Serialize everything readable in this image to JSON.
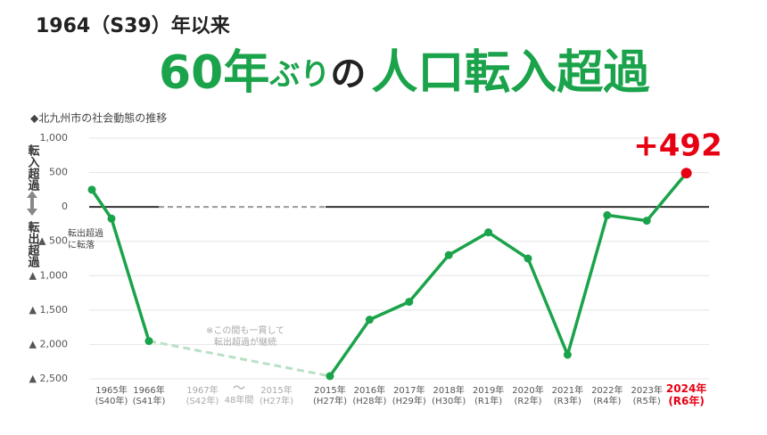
{
  "chart_data": {
    "type": "line",
    "kicker": "1964（S39）年以来",
    "headline": [
      "60年",
      "ぶり",
      "の",
      "人口転入超過"
    ],
    "subtitle": "◆北九州市の社会動態の推移",
    "categories": [
      null,
      "1965年\n(S40年)",
      "1966年\n(S41年)",
      "2015年\n(H27年)",
      "2016年\n(H28年)",
      "2017年\n(H29年)",
      "2018年\n(H30年)",
      "2019年\n(R1年)",
      "2020年\n(R2年)",
      "2021年\n(R3年)",
      "2022年\n(R4年)",
      "2023年\n(R5年)",
      "2024年\n(R6年)"
    ],
    "gap_labels": [
      "1967年\n(S42年)",
      "～",
      "48年間",
      "2015年\n(H27年)"
    ],
    "series": [
      {
        "name": "社会動態",
        "color": "#1aa34a",
        "values": [
          250,
          -170,
          -1950,
          -2460,
          -1640,
          -1380,
          -700,
          -370,
          -750,
          -2150,
          -120,
          -200,
          492
        ]
      }
    ],
    "highlight_color": "#e60012",
    "ylim": [
      -2500,
      1000
    ],
    "yticks": [
      {
        "value": 1000,
        "label": "1,000"
      },
      500,
      0,
      {
        "value": -500,
        "label": "▲ 500"
      },
      {
        "value": -1000,
        "label": "▲ 1,000"
      },
      {
        "value": -1500,
        "label": "▲ 1,500"
      },
      {
        "value": -2000,
        "label": "▲ 2,000"
      },
      {
        "value": -2500,
        "label": "▲ 2,500"
      }
    ],
    "grid": true,
    "annotations": {
      "turn": "転出超過\nに転落",
      "gap_note": "※この間も一貫して\n転出超過が継続",
      "last_value": "+492",
      "up_label": "転入超過",
      "down_label": "転出超過"
    }
  }
}
